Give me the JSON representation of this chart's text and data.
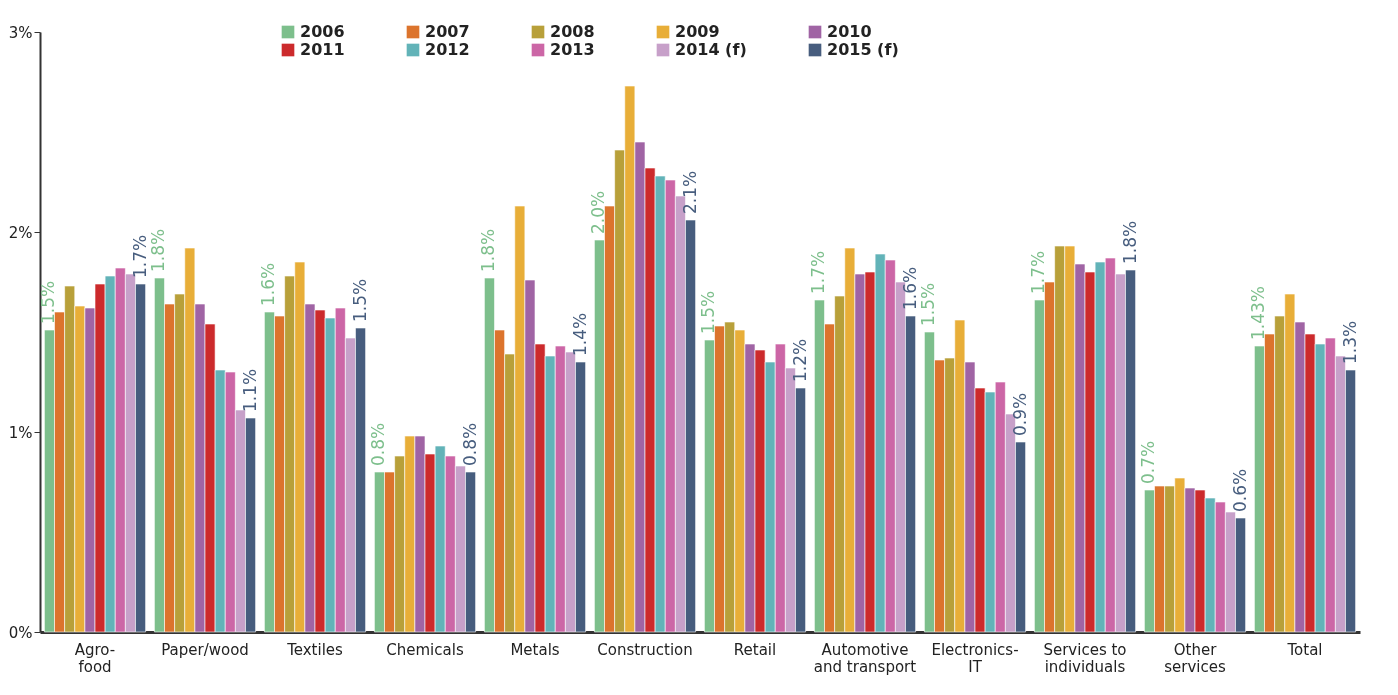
{
  "chart_data": {
    "type": "bar",
    "categories": [
      "Agro-\nfood",
      "Paper/wood",
      "Textiles",
      "Chemicals",
      "Metals",
      "Construction",
      "Retail",
      "Automotive\nand transport",
      "Electronics-\nIT",
      "Services to\nindividuals",
      "Other\nservices",
      "Total"
    ],
    "ylim": [
      0,
      3
    ],
    "yticks": [
      {
        "value": 0,
        "label": "0%"
      },
      {
        "value": 1,
        "label": "1%"
      },
      {
        "value": 2,
        "label": "2%"
      },
      {
        "value": 3,
        "label": "3%"
      }
    ],
    "grid": false,
    "legend": "top",
    "series": [
      {
        "name": "2006",
        "color": "#7dbf8c",
        "values": [
          1.51,
          1.77,
          1.6,
          0.8,
          1.77,
          1.96,
          1.46,
          1.66,
          1.5,
          1.66,
          0.71,
          1.43
        ],
        "value_labels": [
          "1.5%",
          "1.8%",
          "1.6%",
          "0.8%",
          "1.8%",
          "2.0%",
          "1.5%",
          "1.7%",
          "1.5%",
          "1.7%",
          "0.7%",
          "1.43%"
        ]
      },
      {
        "name": "2007",
        "color": "#dc742d",
        "values": [
          1.6,
          1.64,
          1.58,
          0.8,
          1.51,
          2.13,
          1.53,
          1.54,
          1.36,
          1.75,
          0.73,
          1.49
        ]
      },
      {
        "name": "2008",
        "color": "#b8a03a",
        "values": [
          1.73,
          1.69,
          1.78,
          0.88,
          1.39,
          2.41,
          1.55,
          1.68,
          1.37,
          1.93,
          0.73,
          1.58
        ]
      },
      {
        "name": "2009",
        "color": "#e8ae38",
        "values": [
          1.63,
          1.92,
          1.85,
          0.98,
          2.13,
          2.73,
          1.51,
          1.92,
          1.56,
          1.93,
          0.77,
          1.69
        ]
      },
      {
        "name": "2010",
        "color": "#a064a4",
        "values": [
          1.62,
          1.64,
          1.64,
          0.98,
          1.76,
          2.45,
          1.44,
          1.79,
          1.35,
          1.84,
          0.72,
          1.55
        ]
      },
      {
        "name": "2011",
        "color": "#cc2a2c",
        "values": [
          1.74,
          1.54,
          1.61,
          0.89,
          1.44,
          2.32,
          1.41,
          1.8,
          1.22,
          1.8,
          0.71,
          1.49
        ]
      },
      {
        "name": "2012",
        "color": "#62b3b8",
        "values": [
          1.78,
          1.31,
          1.57,
          0.93,
          1.38,
          2.28,
          1.35,
          1.89,
          1.2,
          1.85,
          0.67,
          1.44
        ]
      },
      {
        "name": "2013",
        "color": "#cc66a6",
        "values": [
          1.82,
          1.3,
          1.62,
          0.88,
          1.43,
          2.26,
          1.44,
          1.86,
          1.25,
          1.87,
          0.65,
          1.47
        ]
      },
      {
        "name": "2014 (f)",
        "color": "#c7a0c9",
        "values": [
          1.79,
          1.11,
          1.47,
          0.83,
          1.4,
          2.18,
          1.32,
          1.75,
          1.09,
          1.79,
          0.6,
          1.38
        ]
      },
      {
        "name": "2015 (f)",
        "color": "#475d7e",
        "values": [
          1.74,
          1.07,
          1.52,
          0.8,
          1.35,
          2.06,
          1.22,
          1.58,
          0.95,
          1.81,
          0.57,
          1.31
        ],
        "value_labels": [
          "1.7%",
          "1.1%",
          "1.5%",
          "0.8%",
          "1.4%",
          "2.1%",
          "1.2%",
          "1.6%",
          "0.9%",
          "1.8%",
          "0.6%",
          "1.3%"
        ]
      }
    ]
  }
}
